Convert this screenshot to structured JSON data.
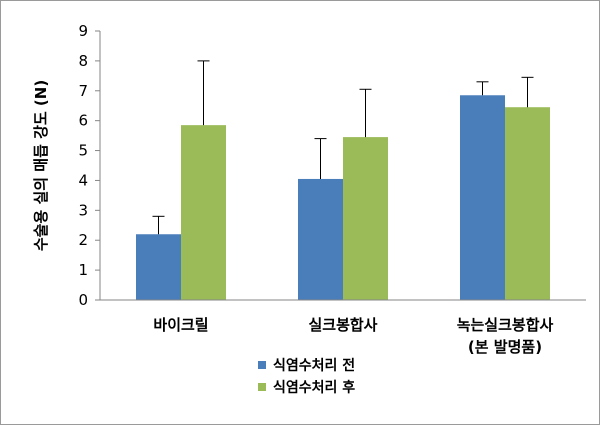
{
  "chart_data": {
    "type": "bar",
    "title": "",
    "xlabel": "",
    "ylabel": "수술용 실의 매듭 강도 (N)",
    "ylim": [
      0,
      9
    ],
    "yticks": [
      0,
      1,
      2,
      3,
      4,
      5,
      6,
      7,
      8,
      9
    ],
    "categories": [
      [
        "바이크릴"
      ],
      [
        "실크봉합사"
      ],
      [
        "녹는실크봉합사",
        "(본  발명품)"
      ]
    ],
    "series": [
      {
        "name": "식염수처리  전",
        "color": "#4a7ebb",
        "values": [
          2.2,
          4.05,
          6.85
        ],
        "errors": [
          0.6,
          1.35,
          0.45
        ]
      },
      {
        "name": "식염수처리  후",
        "color": "#9bbb59",
        "values": [
          5.85,
          5.45,
          6.45
        ],
        "errors": [
          2.15,
          1.6,
          1.0
        ]
      }
    ],
    "legend_position": "bottom",
    "grid": false
  }
}
